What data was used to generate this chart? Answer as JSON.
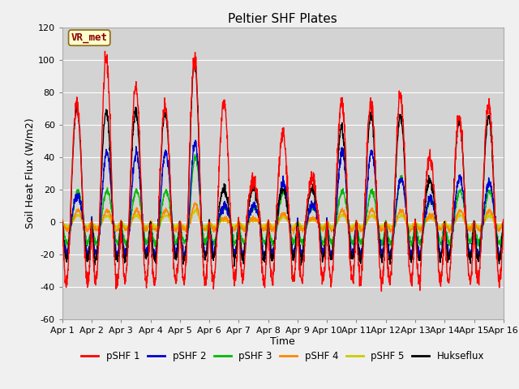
{
  "title": "Peltier SHF Plates",
  "xlabel": "Time",
  "ylabel": "Soil Heat Flux (W/m2)",
  "ylim": [
    -60,
    120
  ],
  "yticks": [
    -60,
    -40,
    -20,
    0,
    20,
    40,
    60,
    80,
    100,
    120
  ],
  "x_labels": [
    "Apr 1",
    "Apr 2",
    "Apr 3",
    "Apr 4",
    "Apr 5",
    "Apr 6",
    "Apr 7",
    "Apr 8",
    "Apr 9",
    "Apr 10",
    "Apr 11",
    "Apr 12",
    "Apr 13",
    "Apr 14",
    "Apr 15",
    "Apr 16"
  ],
  "n_days": 15,
  "colors": {
    "pSHF1": "#ff0000",
    "pSHF2": "#0000cc",
    "pSHF3": "#00bb00",
    "pSHF4": "#ff8800",
    "pSHF5": "#cccc00",
    "Hukseflux": "#000000"
  },
  "legend_labels": [
    "pSHF 1",
    "pSHF 2",
    "pSHF 3",
    "pSHF 4",
    "pSHF 5",
    "Hukseflux"
  ],
  "annotation_text": "VR_met",
  "fig_bg": "#f0f0f0",
  "plot_bg": "#d3d3d3",
  "title_fontsize": 11,
  "axis_fontsize": 9,
  "tick_fontsize": 8
}
